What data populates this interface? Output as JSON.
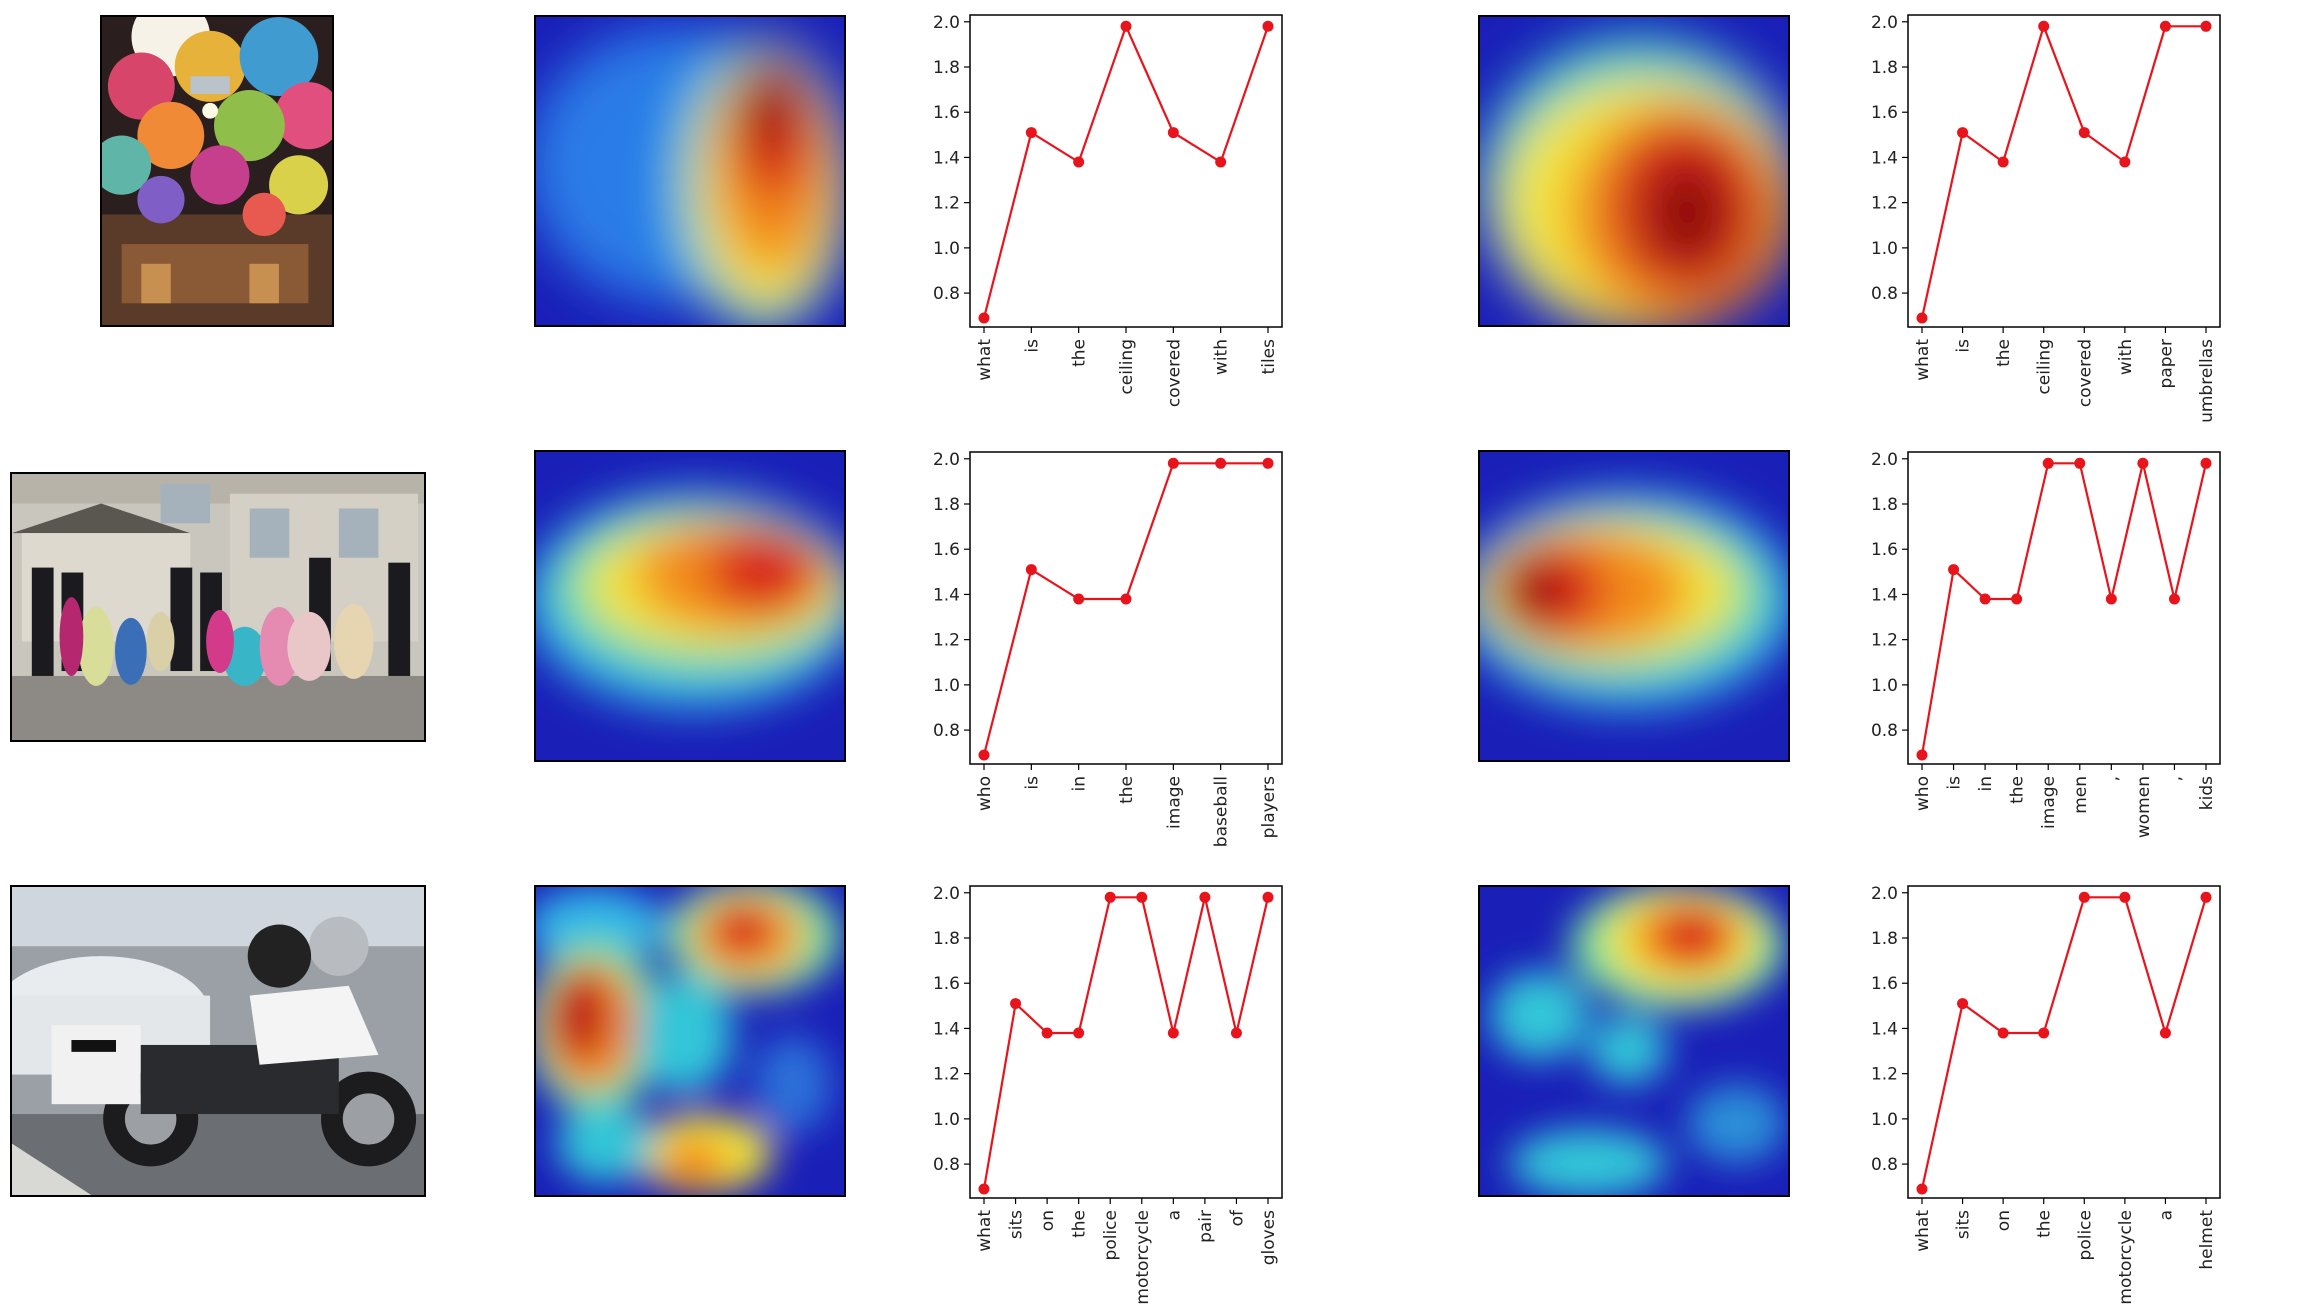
{
  "images": [
    {
      "name": "umbrella-ceiling-photo",
      "scene": "ceiling covered with colorful paper umbrellas"
    },
    {
      "name": "prom-group-photo",
      "scene": "group of teens in formal wear in front of a house"
    },
    {
      "name": "police-motorcycle-photo",
      "scene": "police motorcycle parked next to a police car"
    }
  ],
  "colors": {
    "line": "#e8141c",
    "axis": "#000000"
  },
  "chart_data": [
    {
      "type": "line",
      "row": 1,
      "col": 1,
      "ylim": [
        0.65,
        2.03
      ],
      "yticks": [
        0.8,
        1.0,
        1.2,
        1.4,
        1.6,
        1.8,
        2.0
      ],
      "categories": [
        "what",
        "is",
        "the",
        "ceiling",
        "covered",
        "with",
        "tiles"
      ],
      "values": [
        0.69,
        1.51,
        1.38,
        1.98,
        1.51,
        1.38,
        1.98
      ]
    },
    {
      "type": "line",
      "row": 1,
      "col": 2,
      "ylim": [
        0.65,
        2.03
      ],
      "yticks": [
        0.8,
        1.0,
        1.2,
        1.4,
        1.6,
        1.8,
        2.0
      ],
      "categories": [
        "what",
        "is",
        "the",
        "ceiling",
        "covered",
        "with",
        "paper",
        "umbrellas"
      ],
      "values": [
        0.69,
        1.51,
        1.38,
        1.98,
        1.51,
        1.38,
        1.98,
        1.98
      ]
    },
    {
      "type": "line",
      "row": 2,
      "col": 1,
      "ylim": [
        0.65,
        2.03
      ],
      "yticks": [
        0.8,
        1.0,
        1.2,
        1.4,
        1.6,
        1.8,
        2.0
      ],
      "categories": [
        "who",
        "is",
        "in",
        "the",
        "image",
        "baseball",
        "players"
      ],
      "values": [
        0.69,
        1.51,
        1.38,
        1.38,
        1.98,
        1.98,
        1.98
      ]
    },
    {
      "type": "line",
      "row": 2,
      "col": 2,
      "ylim": [
        0.65,
        2.03
      ],
      "yticks": [
        0.8,
        1.0,
        1.2,
        1.4,
        1.6,
        1.8,
        2.0
      ],
      "categories": [
        "who",
        "is",
        "in",
        "the",
        "image",
        "men",
        ",",
        "women",
        ",",
        "kids"
      ],
      "values": [
        0.69,
        1.51,
        1.38,
        1.38,
        1.98,
        1.98,
        1.38,
        1.98,
        1.38,
        1.98
      ]
    },
    {
      "type": "line",
      "row": 3,
      "col": 1,
      "ylim": [
        0.65,
        2.03
      ],
      "yticks": [
        0.8,
        1.0,
        1.2,
        1.4,
        1.6,
        1.8,
        2.0
      ],
      "categories": [
        "what",
        "sits",
        "on",
        "the",
        "police",
        "motorcycle",
        "a",
        "pair",
        "of",
        "gloves"
      ],
      "values": [
        0.69,
        1.51,
        1.38,
        1.38,
        1.98,
        1.98,
        1.38,
        1.98,
        1.38,
        1.98
      ]
    },
    {
      "type": "line",
      "row": 3,
      "col": 2,
      "ylim": [
        0.65,
        2.03
      ],
      "yticks": [
        0.8,
        1.0,
        1.2,
        1.4,
        1.6,
        1.8,
        2.0
      ],
      "categories": [
        "what",
        "sits",
        "on",
        "the",
        "police",
        "motorcycle",
        "a",
        "helmet"
      ],
      "values": [
        0.69,
        1.51,
        1.38,
        1.38,
        1.98,
        1.98,
        1.38,
        1.98
      ]
    }
  ]
}
